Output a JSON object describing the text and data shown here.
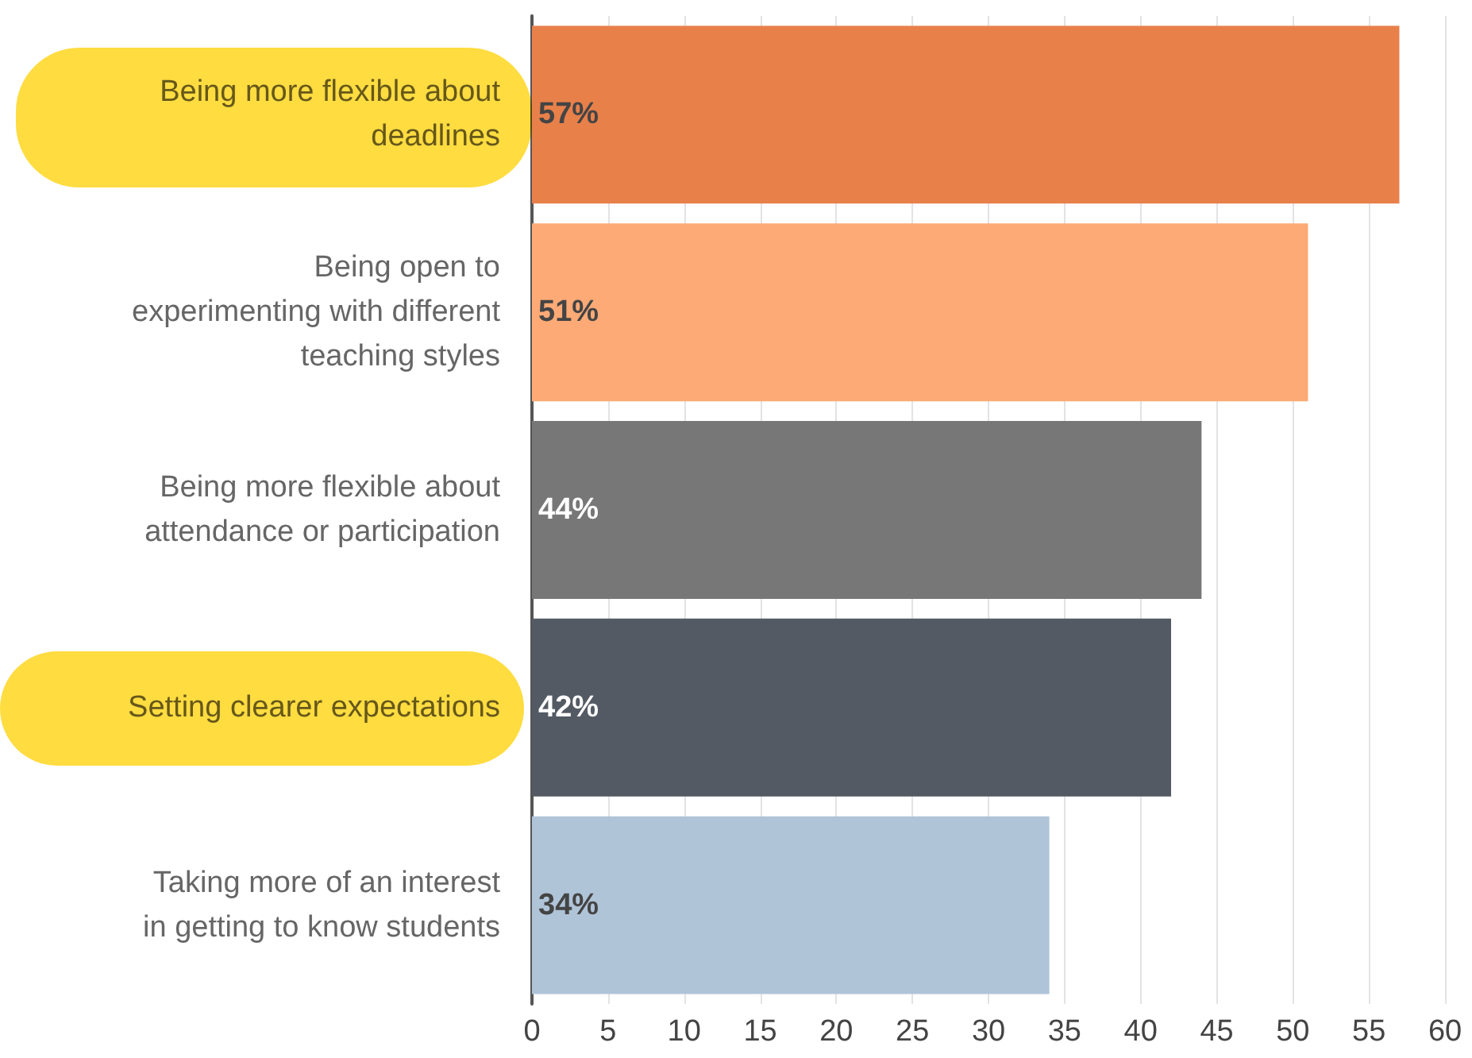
{
  "chart_data": {
    "type": "bar",
    "orientation": "horizontal",
    "categories": [
      "Being more flexible about\ndeadlines",
      "Being open to\nexperimenting with different\nteaching styles",
      "Being more flexible about\nattendance or participation",
      "Setting clearer expectations",
      "Taking more of an interest\nin getting to know students"
    ],
    "values": [
      57,
      51,
      44,
      42,
      34
    ],
    "colors": [
      "#e8804a",
      "#fdaa76",
      "#777777",
      "#535a63",
      "#b0c4d8"
    ],
    "value_labels": [
      "57%",
      "51%",
      "44%",
      "42%",
      "34%"
    ],
    "xlim": [
      0,
      60
    ],
    "xticks": [
      0,
      5,
      10,
      15,
      20,
      25,
      30,
      35,
      40,
      45,
      50,
      55,
      60
    ],
    "grid": "x"
  }
}
